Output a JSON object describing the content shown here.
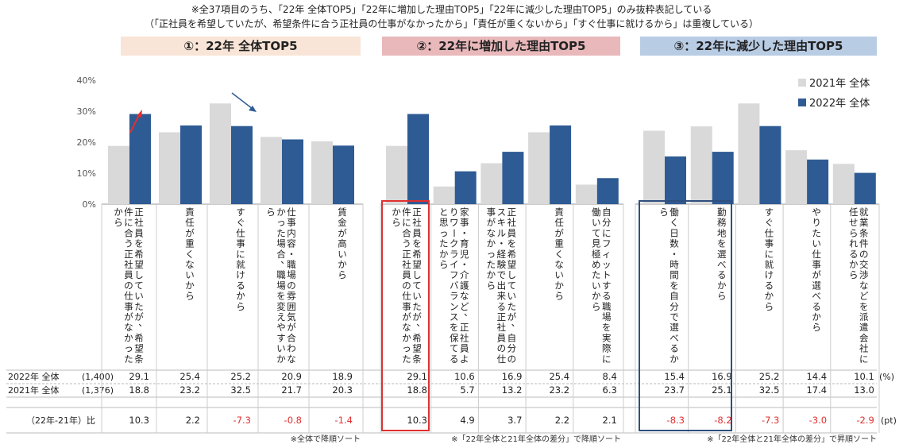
{
  "notes": {
    "line1": "※全37項目のうち、「22年 全体TOP5」「22年に増加した理由TOP5」「22年に減少した理由TOP5」のみ抜粋表記している",
    "line2": "（「正社員を希望していたが、希望条件に合う正社員の仕事がなかったから」「責任が重くないから」「すぐ仕事に就けるから」は重複している）"
  },
  "colors": {
    "y2021": "#d9d9d9",
    "y2022": "#2f5b94",
    "header1": "#f8e5d7",
    "header2": "#e8b8bb",
    "header3": "#b8cce4",
    "negative": "#e0302f",
    "highlight_red": "#e0302f",
    "highlight_blue": "#2f4f7f",
    "arrow_red": "#e0302f",
    "arrow_blue": "#2f5b94"
  },
  "chart_data": {
    "type": "bar",
    "ylim": [
      0,
      40
    ],
    "yticks": [
      "0%",
      "10%",
      "20%",
      "30%",
      "40%"
    ],
    "legend": [
      "2021年 全体",
      "2022年 全体"
    ],
    "legend_position": "top-right",
    "row_labels": {
      "r2022_label": "2022年 全体",
      "r2022_n": "(1,400)",
      "r2021_label": "2021年 全体",
      "r2021_n": "(1,376)",
      "diff_label": "（22年-21年）比",
      "unit_pct": "(%)",
      "unit_pt": "(pt)"
    },
    "panels": [
      {
        "header": "①：22年 全体TOP5",
        "footnote": "※全体で降順ソート",
        "categories": [
          "正社員を希望していたが、希望条件に合う正社員の仕事がなかったから",
          "責任が重くないから",
          "すぐ仕事に就けるから",
          "仕事内容・職場の雰囲気が合わなかった場合、職場を変えやすいから",
          "賃金が高いから"
        ],
        "y2022": [
          29.1,
          25.4,
          25.2,
          20.9,
          18.9
        ],
        "y2021": [
          18.8,
          23.2,
          32.5,
          21.7,
          20.3
        ],
        "diff": [
          "10.3",
          "2.2",
          "-7.3",
          "-0.8",
          "-1.4"
        ]
      },
      {
        "header": "②：22年に増加した理由TOP5",
        "footnote": "※「22年全体と21年全体の差分」で降順ソート",
        "categories": [
          "正社員を希望していたが、希望条件に合う正社員の仕事がなかったから",
          "家事・育児・介護など、正社員よりワークライフバランスを保てると思ったから",
          "正社員を希望していたが、自分のスキル・経験で出来る正社員の仕事がなかったから",
          "責任が重くないから",
          "自分にフィットする職場を実際に働いて見極めたいから"
        ],
        "y2022": [
          29.1,
          10.6,
          16.9,
          25.4,
          8.4
        ],
        "y2021": [
          18.8,
          5.7,
          13.2,
          23.2,
          6.3
        ],
        "diff": [
          "10.3",
          "4.9",
          "3.7",
          "2.2",
          "2.1"
        ]
      },
      {
        "header": "③：22年に減少した理由TOP5",
        "footnote": "※「22年全体と21年全体の差分」で昇順ソート",
        "categories": [
          "働く日数・時間を自分で選べるから",
          "勤務地を選べるから",
          "すぐ仕事に就けるから",
          "やりたい仕事が選べるから",
          "就業条件の交渉などを派遣会社に任せられるから"
        ],
        "y2022": [
          15.4,
          16.9,
          25.2,
          14.4,
          10.1
        ],
        "y2021": [
          23.7,
          25.1,
          32.5,
          17.4,
          13.0
        ],
        "diff": [
          "-8.3",
          "-8.2",
          "-7.3",
          "-3.0",
          "-2.9"
        ]
      }
    ]
  }
}
